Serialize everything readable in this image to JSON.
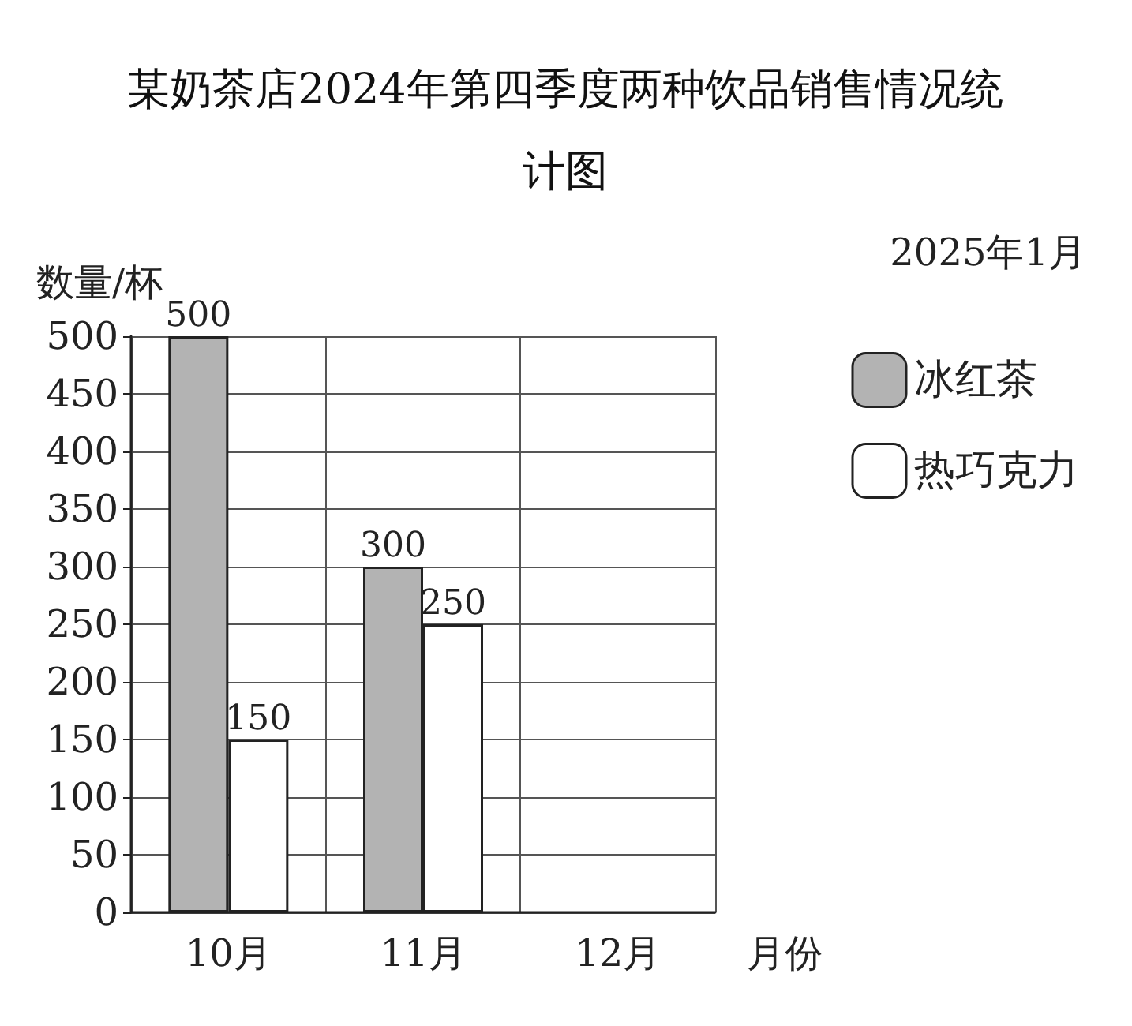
{
  "chart_data": {
    "type": "bar",
    "title": "某奶茶店2024年第四季度两种饮品销售情况统计图",
    "ylabel": "数量/杯",
    "xlabel": "月份",
    "annotations": [
      "2025年1月"
    ],
    "categories": [
      "10月",
      "11月",
      "12月"
    ],
    "series": [
      {
        "name": "冰红茶",
        "color": "#b3b3b3",
        "values": [
          500,
          300,
          null
        ]
      },
      {
        "name": "热巧克力",
        "color": "#ffffff",
        "values": [
          150,
          250,
          null
        ]
      }
    ],
    "ylim": [
      0,
      500
    ],
    "yticks": [
      0,
      50,
      100,
      150,
      200,
      250,
      300,
      350,
      400,
      450,
      500
    ],
    "grid": true,
    "legend": "right",
    "data_labels": true
  }
}
